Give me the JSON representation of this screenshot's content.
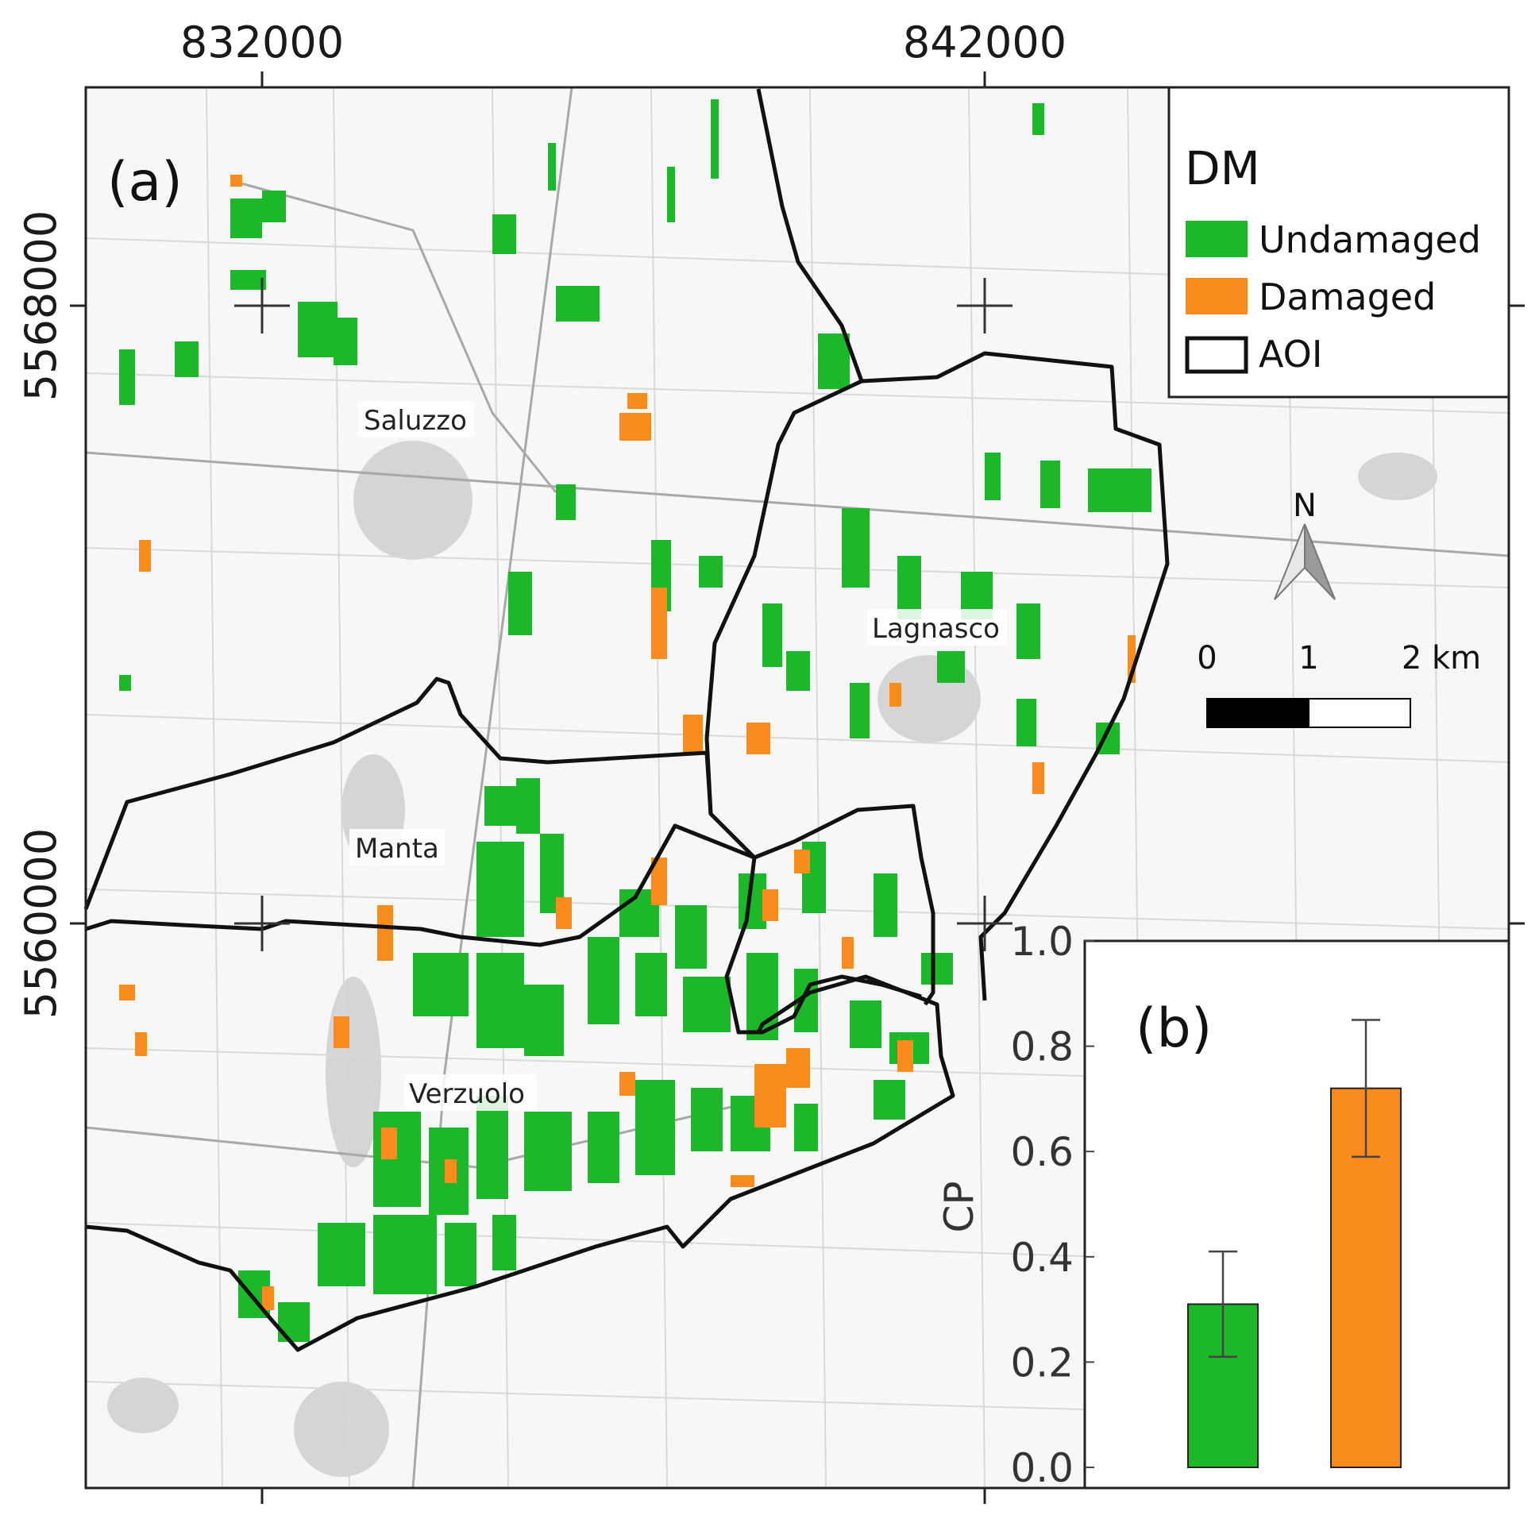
{
  "map": {
    "panel_label": "(a)",
    "x_ticks": [
      "832000",
      "842000"
    ],
    "y_ticks": [
      "5568000",
      "5560000"
    ],
    "places": [
      "Saluzzo",
      "Lagnasco",
      "Manta",
      "Verzuolo"
    ],
    "north_label": "N",
    "scale": {
      "labels": [
        "0",
        "1",
        "2 km"
      ]
    },
    "legend": {
      "title": "DM",
      "items": [
        {
          "label": "Undamaged",
          "color": "#1db829",
          "kind": "fill"
        },
        {
          "label": "Damaged",
          "color": "#f98c1d",
          "kind": "fill"
        },
        {
          "label": "AOI",
          "color": "#111111",
          "kind": "outline"
        }
      ]
    }
  },
  "chart_data": {
    "type": "bar",
    "panel_label": "(b)",
    "ylabel": "CP",
    "ylim": [
      0,
      1.0
    ],
    "y_ticks": [
      "0.0",
      "0.2",
      "0.4",
      "0.6",
      "0.8",
      "1.0"
    ],
    "categories": [
      "Undamaged",
      "Damaged"
    ],
    "values": [
      0.31,
      0.72
    ],
    "errors": [
      0.1,
      0.13
    ],
    "colors": [
      "#1db829",
      "#f98c1d"
    ]
  }
}
